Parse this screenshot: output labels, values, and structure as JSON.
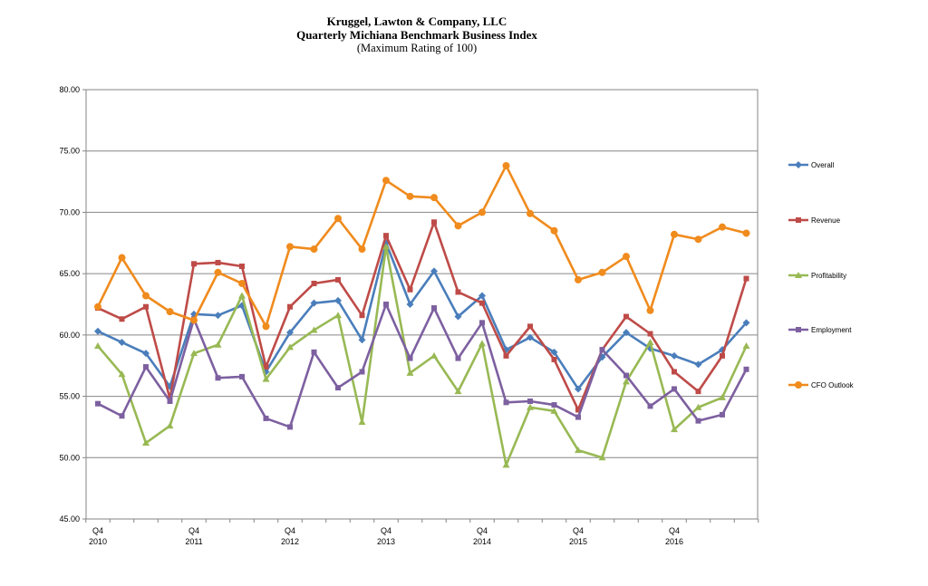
{
  "header": {
    "line1": "Kruggel, Lawton & Company, LLC",
    "line2": "Quarterly  Michiana  Benchmark  Business Index",
    "line3": "(Maximum  Rating  of 100)"
  },
  "chart_data": {
    "type": "line",
    "title": "Kruggel, Lawton & Company, LLC Quarterly Michiana Benchmark Business Index",
    "subtitle": "(Maximum Rating of 100)",
    "xlabel": "",
    "ylabel": "",
    "ylim": [
      45,
      80
    ],
    "yticks": [
      "45.00",
      "50.00",
      "55.00",
      "60.00",
      "65.00",
      "70.00",
      "75.00",
      "80.00"
    ],
    "grid": true,
    "legend_position": "right",
    "x_ticks": [
      {
        "index": 0,
        "q": "Q4",
        "year": "2010"
      },
      {
        "index": 4,
        "q": "Q4",
        "year": "2011"
      },
      {
        "index": 8,
        "q": "Q4",
        "year": "2012"
      },
      {
        "index": 12,
        "q": "Q4",
        "year": "2013"
      },
      {
        "index": 16,
        "q": "Q4",
        "year": "2014"
      },
      {
        "index": 20,
        "q": "Q4",
        "year": "2015"
      },
      {
        "index": 24,
        "q": "Q4",
        "year": "2016"
      }
    ],
    "series": [
      {
        "name": "Overall",
        "color": "#4a7ebb",
        "marker": "diamond",
        "values": [
          60.3,
          59.4,
          58.5,
          55.8,
          61.7,
          61.6,
          62.4,
          57.0,
          60.2,
          62.6,
          62.8,
          59.6,
          67.5,
          62.5,
          65.2,
          61.5,
          63.2,
          58.8,
          59.8,
          58.6,
          55.6,
          58.2,
          60.2,
          58.9,
          58.3,
          57.6,
          58.8,
          61.0
        ]
      },
      {
        "name": "Revenue",
        "color": "#be4b48",
        "marker": "square",
        "values": [
          62.2,
          61.3,
          62.3,
          54.8,
          65.8,
          65.9,
          65.6,
          57.4,
          62.3,
          64.2,
          64.5,
          61.6,
          68.1,
          63.7,
          69.2,
          63.5,
          62.6,
          58.3,
          60.7,
          58.0,
          53.9,
          58.8,
          61.5,
          60.1,
          57.0,
          55.4,
          58.3,
          64.6
        ]
      },
      {
        "name": "Profitability",
        "color": "#98b954",
        "marker": "triangle",
        "values": [
          59.1,
          56.8,
          51.2,
          52.6,
          58.5,
          59.2,
          63.2,
          56.4,
          59.0,
          60.4,
          61.6,
          52.9,
          67.2,
          56.9,
          58.3,
          55.4,
          59.3,
          49.4,
          54.1,
          53.8,
          50.6,
          50.0,
          56.2,
          59.4,
          52.3,
          54.1,
          54.9,
          59.1
        ]
      },
      {
        "name": "Employment",
        "color": "#7d60a0",
        "marker": "square",
        "values": [
          54.4,
          53.4,
          57.4,
          54.6,
          61.3,
          56.5,
          56.6,
          53.2,
          52.5,
          58.6,
          55.7,
          57.0,
          62.5,
          58.1,
          62.2,
          58.1,
          61.0,
          54.5,
          54.6,
          54.3,
          53.3,
          58.8,
          56.7,
          54.2,
          55.6,
          53.0,
          53.5,
          57.2
        ]
      },
      {
        "name": "CFO Outlook",
        "color": "#f08b1d",
        "marker": "circle",
        "values": [
          62.3,
          66.3,
          63.2,
          61.9,
          61.2,
          65.1,
          64.2,
          60.7,
          67.2,
          67.0,
          69.5,
          67.0,
          72.6,
          71.3,
          71.2,
          68.9,
          70.0,
          73.8,
          69.9,
          68.5,
          64.5,
          65.1,
          66.4,
          62.0,
          68.2,
          67.8,
          68.8,
          68.3
        ]
      }
    ]
  }
}
